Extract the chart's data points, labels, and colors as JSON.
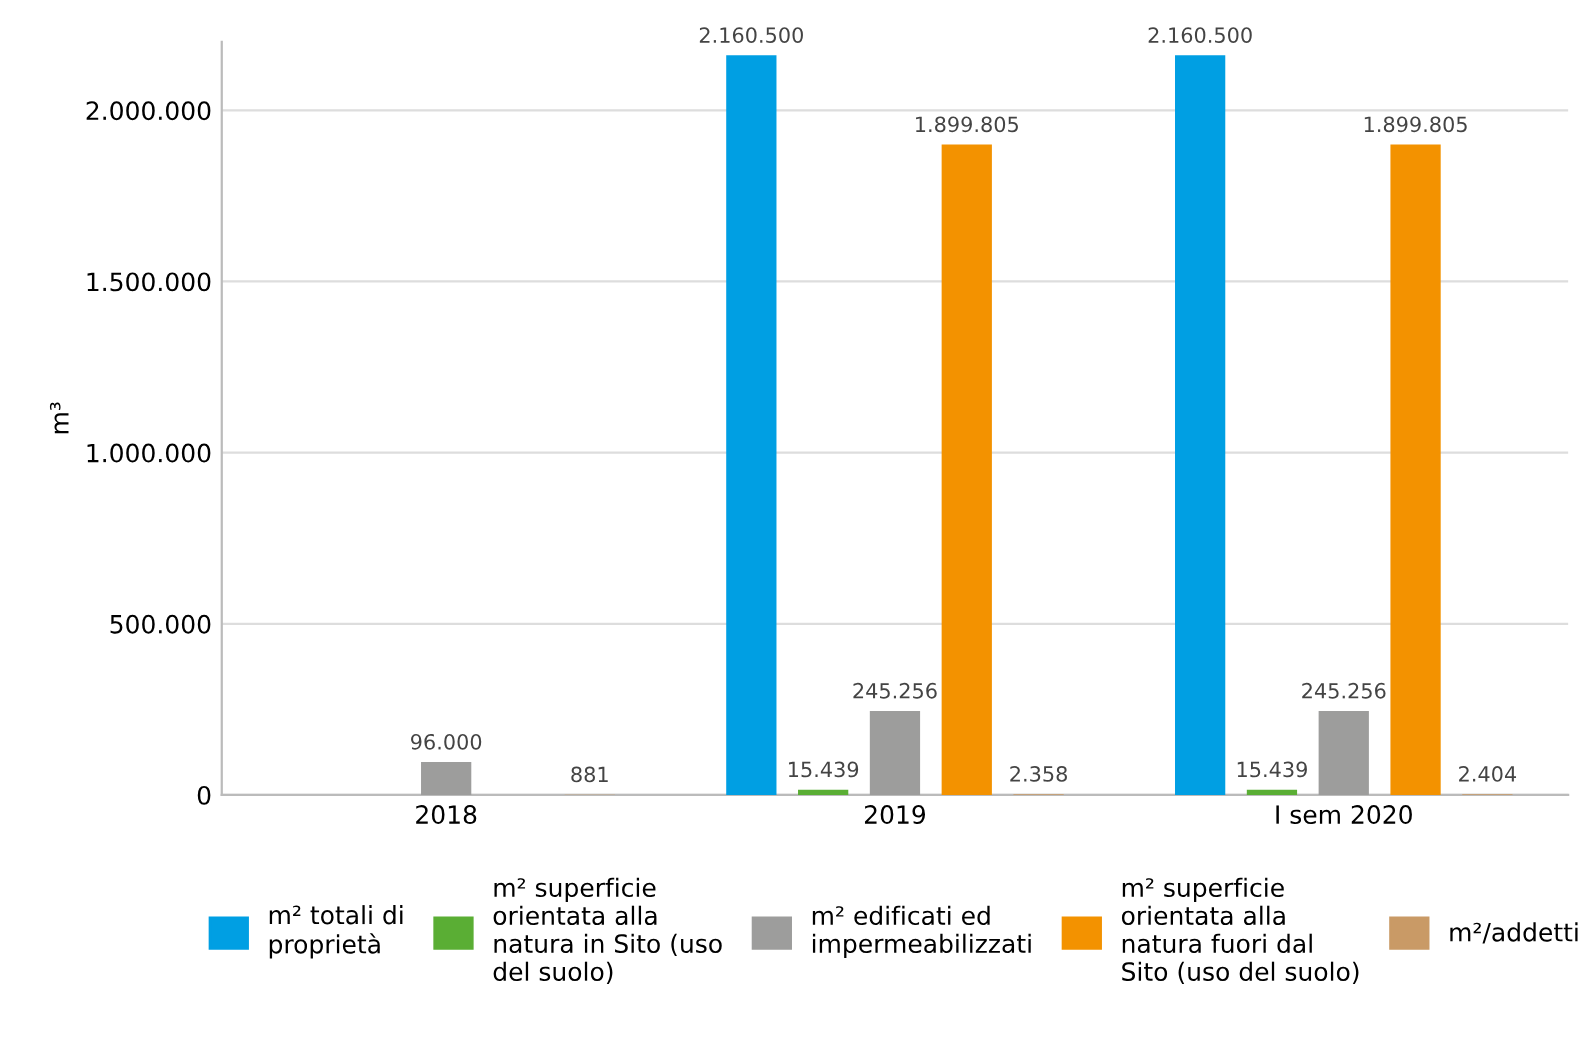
{
  "chart_data": {
    "type": "bar",
    "ylabel": "m³",
    "categories": [
      "2018",
      "2019",
      "I sem 2020"
    ],
    "series": [
      {
        "name": "m² totali di proprietà",
        "color": "#009fe3",
        "values": [
          null,
          2160500,
          2160500
        ],
        "value_labels": [
          null,
          "2.160.500",
          "2.160.500"
        ]
      },
      {
        "name": "m² superficie orientata alla natura in Sito (uso del suolo)",
        "color": "#5aae34",
        "values": [
          null,
          15439,
          15439
        ],
        "value_labels": [
          null,
          "15.439",
          "15.439"
        ]
      },
      {
        "name": "m² edificati ed impermeabilizzati",
        "color": "#9d9d9c",
        "values": [
          96000,
          245256,
          245256
        ],
        "value_labels": [
          "96.000",
          "245.256",
          "245.256"
        ]
      },
      {
        "name": "m² superficie orientata alla natura fuori dal Sito (uso del suolo)",
        "color": "#f39200",
        "values": [
          null,
          1899805,
          1899805
        ],
        "value_labels": [
          null,
          "1.899.805",
          "1.899.805"
        ]
      },
      {
        "name": "m²/addetti",
        "color": "#c99a66",
        "values": [
          881,
          2358,
          2404
        ],
        "value_labels": [
          "881",
          "2.358",
          "2.404"
        ]
      }
    ],
    "ylim": [
      0,
      2200000
    ],
    "yticks": [
      {
        "value": 0,
        "label": "0"
      },
      {
        "value": 500000,
        "label": "500.000"
      },
      {
        "value": 1000000,
        "label": "1.000.000"
      },
      {
        "value": 1500000,
        "label": "1.500.000"
      },
      {
        "value": 2000000,
        "label": "2.000.000"
      }
    ],
    "grid": "y",
    "legend": "bottom"
  }
}
